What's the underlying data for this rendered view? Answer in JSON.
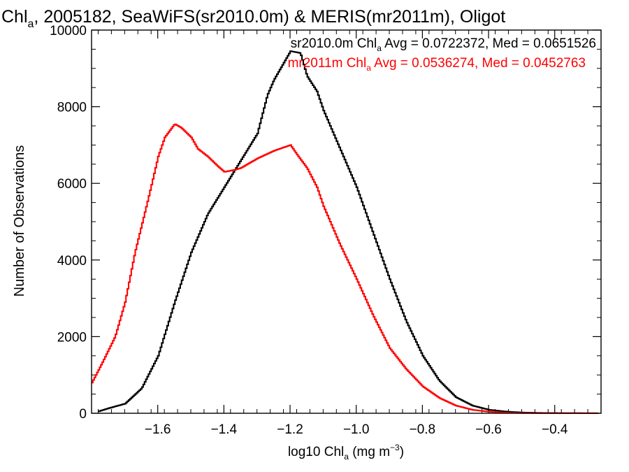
{
  "chart_data": {
    "type": "line",
    "title": {
      "text": "Chl",
      "sub": "a",
      "rest": ", 2005182, SeaWiFS(sr2010.0m) & MERIS(mr2011m), Oligot"
    },
    "xlabel": {
      "pre": "log10 Chl",
      "sub": "a",
      "mid": " (mg m",
      "sup": "−3",
      "post": ")"
    },
    "ylabel": "Number of Observations",
    "xlim": [
      -1.8,
      -0.26
    ],
    "ylim": [
      0,
      10000
    ],
    "x_ticks": [
      -1.6,
      -1.4,
      -1.2,
      -1.0,
      -0.8,
      -0.6,
      -0.4
    ],
    "x_tick_labels": [
      "−1.6",
      "−1.4",
      "−1.2",
      "−1.0",
      "−0.8",
      "−0.6",
      "−0.4"
    ],
    "y_ticks": [
      0,
      2000,
      4000,
      6000,
      8000,
      10000
    ],
    "y_tick_labels": [
      "0",
      "2000",
      "4000",
      "6000",
      "8000",
      "10000"
    ],
    "grid": false,
    "legend_position": "top-right",
    "series": [
      {
        "name": {
          "pre": "sr2010.0m Chl",
          "sub": "a",
          "post": " Avg = 0.0722372, Med = 0.0651526"
        },
        "color": "#000000",
        "x": [
          -1.78,
          -1.75,
          -1.7,
          -1.65,
          -1.6,
          -1.55,
          -1.5,
          -1.45,
          -1.4,
          -1.35,
          -1.3,
          -1.27,
          -1.25,
          -1.22,
          -1.2,
          -1.17,
          -1.15,
          -1.12,
          -1.1,
          -1.05,
          -1.0,
          -0.95,
          -0.9,
          -0.85,
          -0.8,
          -0.75,
          -0.7,
          -0.65,
          -0.6,
          -0.55,
          -0.5,
          -0.45,
          -0.4,
          -0.35,
          -0.3,
          -0.27
        ],
        "y": [
          50,
          130,
          250,
          650,
          1500,
          2900,
          4200,
          5200,
          5900,
          6600,
          7300,
          8300,
          8700,
          9150,
          9450,
          9400,
          8800,
          8400,
          7900,
          6900,
          5900,
          4700,
          3500,
          2400,
          1500,
          850,
          420,
          200,
          90,
          45,
          20,
          10,
          5,
          3,
          2,
          1
        ]
      },
      {
        "name": {
          "pre": "mr2011m Chl",
          "sub": "a",
          "post": " Avg = 0.0536274, Med = 0.0452763"
        },
        "color": "#ff0000",
        "x": [
          -1.8,
          -1.77,
          -1.73,
          -1.7,
          -1.67,
          -1.63,
          -1.6,
          -1.58,
          -1.55,
          -1.53,
          -1.5,
          -1.48,
          -1.45,
          -1.42,
          -1.4,
          -1.37,
          -1.35,
          -1.3,
          -1.25,
          -1.2,
          -1.18,
          -1.15,
          -1.12,
          -1.1,
          -1.05,
          -1.0,
          -0.95,
          -0.9,
          -0.85,
          -0.8,
          -0.75,
          -0.7,
          -0.65,
          -0.6,
          -0.55,
          -0.5,
          -0.45,
          -0.4,
          -0.35,
          -0.3,
          -0.27
        ],
        "y": [
          800,
          1300,
          2000,
          2900,
          4200,
          5600,
          6700,
          7200,
          7550,
          7450,
          7200,
          6900,
          6700,
          6450,
          6300,
          6350,
          6400,
          6650,
          6850,
          7000,
          6750,
          6400,
          5900,
          5400,
          4400,
          3500,
          2550,
          1700,
          1150,
          700,
          400,
          200,
          90,
          40,
          15,
          6,
          3,
          2,
          1,
          1,
          0
        ]
      }
    ]
  }
}
